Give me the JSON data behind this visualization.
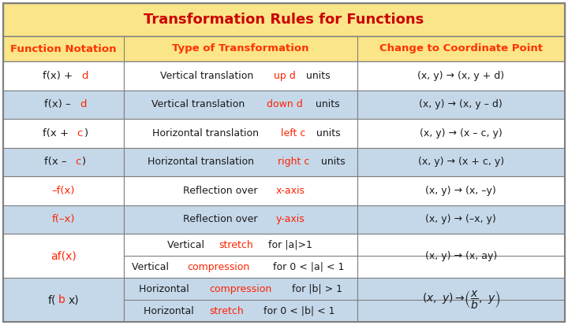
{
  "title": "Transformation Rules for Functions",
  "title_bg": "#FAE589",
  "title_color": "#CC0000",
  "header_bg": "#FAE589",
  "header_color": "#FF3300",
  "white_row": "#FFFFFF",
  "blue_row": "#C5D8EA",
  "border_color": "#7F7F7F",
  "text_black": "#1A1A1A",
  "text_red": "#FF2200",
  "fig_bg": "#FFFFFF",
  "headers": [
    "Function Notation",
    "Type of Transformation",
    "Change to Coordinate Point"
  ],
  "col_ratios": [
    0.215,
    0.415,
    0.37
  ],
  "rows": [
    {
      "c0": [
        [
          "f(x) + ",
          "k"
        ],
        [
          "d",
          "r"
        ]
      ],
      "c1": [
        [
          "Vertical translation ",
          "k"
        ],
        [
          "up d",
          "r"
        ],
        [
          " units",
          "k"
        ]
      ],
      "c2": [
        [
          "(x, y) → (x, y + d)",
          "k"
        ]
      ],
      "bg": "w",
      "split": false
    },
    {
      "c0": [
        [
          "f(x) – ",
          "k"
        ],
        [
          "d",
          "r"
        ]
      ],
      "c1": [
        [
          "Vertical translation ",
          "k"
        ],
        [
          "down d",
          "r"
        ],
        [
          " units",
          "k"
        ]
      ],
      "c2": [
        [
          "(x, y) → (x, y – d)",
          "k"
        ]
      ],
      "bg": "b",
      "split": false
    },
    {
      "c0": [
        [
          "f(x + ",
          "k"
        ],
        [
          "c",
          "r"
        ],
        [
          ")",
          "k"
        ]
      ],
      "c1": [
        [
          "Horizontal translation ",
          "k"
        ],
        [
          "left c",
          "r"
        ],
        [
          " units",
          "k"
        ]
      ],
      "c2": [
        [
          "(x, y) → (x – c, y)",
          "k"
        ]
      ],
      "bg": "w",
      "split": false
    },
    {
      "c0": [
        [
          "f(x – ",
          "k"
        ],
        [
          "c",
          "r"
        ],
        [
          ")",
          "k"
        ]
      ],
      "c1": [
        [
          "Horizontal translation ",
          "k"
        ],
        [
          "right c",
          "r"
        ],
        [
          " units",
          "k"
        ]
      ],
      "c2": [
        [
          "(x, y) → (x + c, y)",
          "k"
        ]
      ],
      "bg": "b",
      "split": false
    },
    {
      "c0": [
        [
          "–f(x)",
          "r"
        ]
      ],
      "c1": [
        [
          "Reflection over ",
          "k"
        ],
        [
          "x-axis",
          "r"
        ]
      ],
      "c2": [
        [
          "(x, y) → (x, –y)",
          "k"
        ]
      ],
      "bg": "w",
      "split": false
    },
    {
      "c0": [
        [
          "f(–x)",
          "r"
        ]
      ],
      "c1": [
        [
          "Reflection over ",
          "k"
        ],
        [
          "y-axis",
          "r"
        ]
      ],
      "c2": [
        [
          "(x, y) → (–x, y)",
          "k"
        ]
      ],
      "bg": "b",
      "split": false
    },
    {
      "c0": [
        [
          "af(x)",
          "r"
        ]
      ],
      "c1a": [
        [
          "Vertical ",
          "k"
        ],
        [
          "stretch",
          "r"
        ],
        [
          " for |a|>1",
          "k"
        ]
      ],
      "c1b": [
        [
          "Vertical ",
          "k"
        ],
        [
          "compression",
          "r"
        ],
        [
          " for 0 < |a| < 1",
          "k"
        ]
      ],
      "c2": [
        [
          "(x, y) → (x, ay)",
          "k"
        ]
      ],
      "bg": "w",
      "split": true
    },
    {
      "c0": [
        [
          "f(",
          "k"
        ],
        [
          "b",
          "r"
        ],
        [
          "x)",
          "k"
        ]
      ],
      "c1a": [
        [
          "Horizontal ",
          "k"
        ],
        [
          "compression",
          "r"
        ],
        [
          " for |b| > 1",
          "k"
        ]
      ],
      "c1b": [
        [
          "Horizontal ",
          "k"
        ],
        [
          "stretch",
          "r"
        ],
        [
          " for 0 < |b| < 1",
          "k"
        ]
      ],
      "c2_frac": true,
      "bg": "b",
      "split": true
    }
  ]
}
